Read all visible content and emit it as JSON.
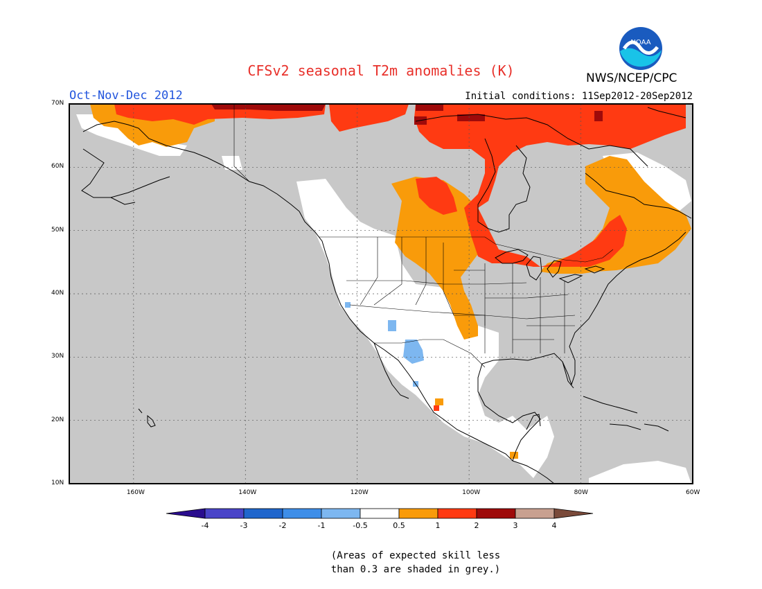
{
  "title": "CFSv2 seasonal T2m anomalies (K)",
  "agency": "NWS/NCEP/CPC",
  "logo_text": "NOAA",
  "season": "Oct-Nov-Dec 2012",
  "initial_conditions": "Initial conditions: 11Sep2012-20Sep2012",
  "note_line1": "(Areas of expected skill less",
  "note_line2": "than 0.3 are shaded in grey.)",
  "lat_labels": [
    "70N",
    "60N",
    "50N",
    "40N",
    "30N",
    "20N",
    "10N"
  ],
  "lon_labels": [
    "160W",
    "140W",
    "120W",
    "100W",
    "80W",
    "60W"
  ],
  "colorbar": {
    "labels": [
      "-4",
      "-3",
      "-2",
      "-1",
      "-0.5",
      "0.5",
      "1",
      "2",
      "3",
      "4"
    ],
    "colors": [
      "#2a0d8e",
      "#4a44c8",
      "#1f66cc",
      "#3e8ee8",
      "#7db7f0",
      "#ffffff",
      "#f99b0a",
      "#ff3a12",
      "#9e0a0a",
      "#c8a090",
      "#7a4a3a"
    ]
  },
  "map_colors": {
    "grey": "#c8c8c8",
    "white": "#ffffff",
    "orange": "#f99b0a",
    "red": "#ff3a12",
    "darkred": "#9e0a0a",
    "lightblue": "#7db7f0"
  }
}
